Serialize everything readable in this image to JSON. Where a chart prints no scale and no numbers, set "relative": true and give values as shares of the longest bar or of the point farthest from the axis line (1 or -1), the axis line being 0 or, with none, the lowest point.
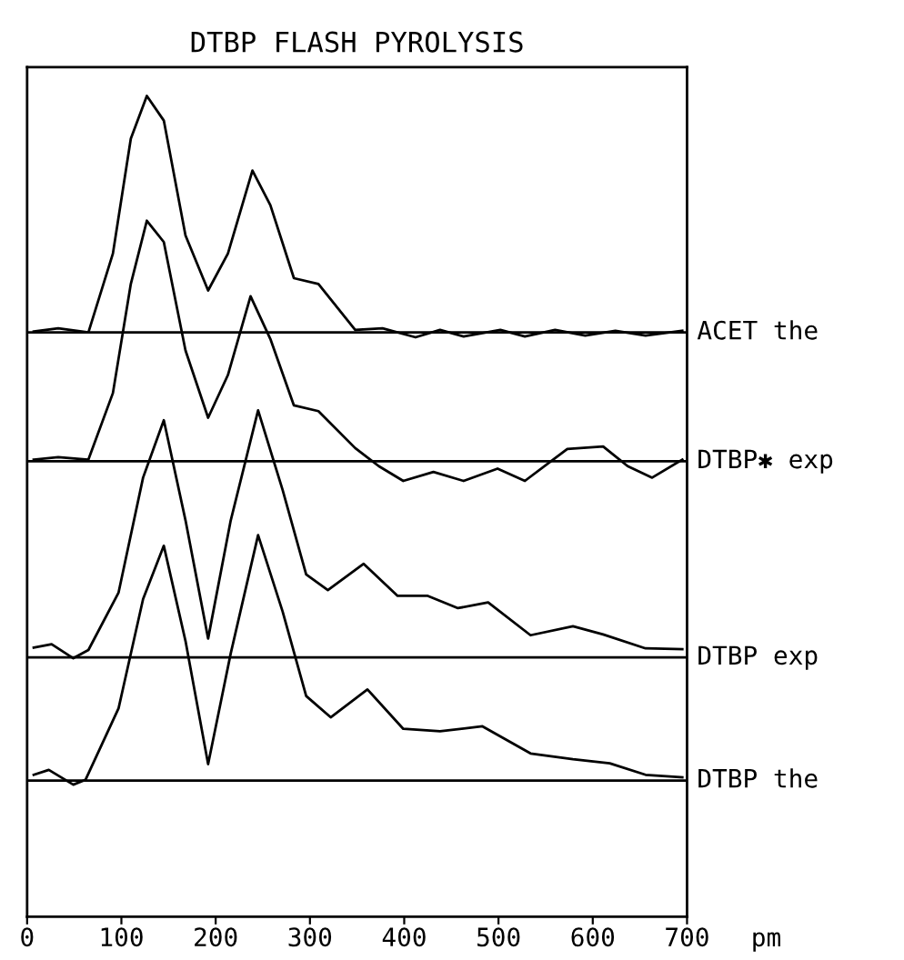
{
  "chart_data": {
    "type": "line",
    "title": "DTBP FLASH PYROLYSIS",
    "xlabel": "pm",
    "relative": true,
    "xlim": [
      0,
      700
    ],
    "xticks": [
      0,
      100,
      200,
      300,
      400,
      500,
      600,
      700
    ],
    "tick_labels": "x",
    "grid": false,
    "legend": false,
    "marker": "none",
    "line_style": "solid",
    "series": [
      {
        "color": "#000000",
        "x": [
          7,
          33,
          65,
          91,
          110,
          127,
          145,
          168,
          192,
          213,
          239,
          258,
          283,
          309,
          348,
          377,
          412,
          438,
          463,
          502,
          528,
          560,
          592,
          624,
          656,
          695
        ],
        "values": [
          0.713,
          0.717,
          0.712,
          0.808,
          0.948,
          1.0,
          0.97,
          0.83,
          0.763,
          0.808,
          0.909,
          0.867,
          0.778,
          0.771,
          0.715,
          0.717,
          0.706,
          0.715,
          0.707,
          0.715,
          0.707,
          0.715,
          0.708,
          0.714,
          0.708,
          0.714
        ]
      },
      {
        "color": "#000000",
        "x": [
          7,
          33,
          65,
          91,
          110,
          127,
          145,
          168,
          192,
          213,
          237,
          258,
          283,
          309,
          348,
          373,
          399,
          431,
          463,
          499,
          528,
          573,
          611,
          637,
          663,
          695
        ],
        "values": [
          0.557,
          0.56,
          0.557,
          0.638,
          0.771,
          0.848,
          0.822,
          0.69,
          0.608,
          0.66,
          0.756,
          0.704,
          0.623,
          0.616,
          0.571,
          0.549,
          0.531,
          0.542,
          0.531,
          0.546,
          0.531,
          0.57,
          0.573,
          0.549,
          0.535,
          0.557
        ]
      },
      {
        "color": "#000000",
        "x": [
          7,
          26,
          49,
          65,
          97,
          123,
          145,
          168,
          192,
          216,
          245,
          271,
          296,
          319,
          357,
          393,
          425,
          457,
          489,
          534,
          579,
          611,
          656,
          695
        ],
        "values": [
          0.328,
          0.332,
          0.315,
          0.325,
          0.395,
          0.535,
          0.605,
          0.483,
          0.339,
          0.483,
          0.617,
          0.52,
          0.417,
          0.398,
          0.43,
          0.391,
          0.391,
          0.376,
          0.383,
          0.343,
          0.354,
          0.344,
          0.327,
          0.326
        ]
      },
      {
        "color": "#000000",
        "x": [
          7,
          23,
          49,
          62,
          97,
          123,
          145,
          168,
          192,
          216,
          245,
          271,
          296,
          322,
          361,
          399,
          438,
          483,
          534,
          579,
          618,
          656,
          695
        ],
        "values": [
          0.173,
          0.179,
          0.161,
          0.167,
          0.254,
          0.387,
          0.452,
          0.336,
          0.186,
          0.321,
          0.465,
          0.372,
          0.269,
          0.243,
          0.277,
          0.229,
          0.226,
          0.232,
          0.199,
          0.192,
          0.187,
          0.173,
          0.17
        ]
      }
    ],
    "ref_lines": [
      {
        "axis": "y",
        "value": 0.712,
        "label": "ACET the",
        "color": "#000000",
        "line_style": "solid"
      },
      {
        "axis": "y",
        "value": 0.555,
        "label": "DTBP✱ exp",
        "color": "#000000",
        "line_style": "solid"
      },
      {
        "axis": "y",
        "value": 0.316,
        "label": "DTBP exp",
        "color": "#000000",
        "line_style": "solid"
      },
      {
        "axis": "y",
        "value": 0.166,
        "label": "DTBP the",
        "color": "#000000",
        "line_style": "solid"
      }
    ]
  }
}
